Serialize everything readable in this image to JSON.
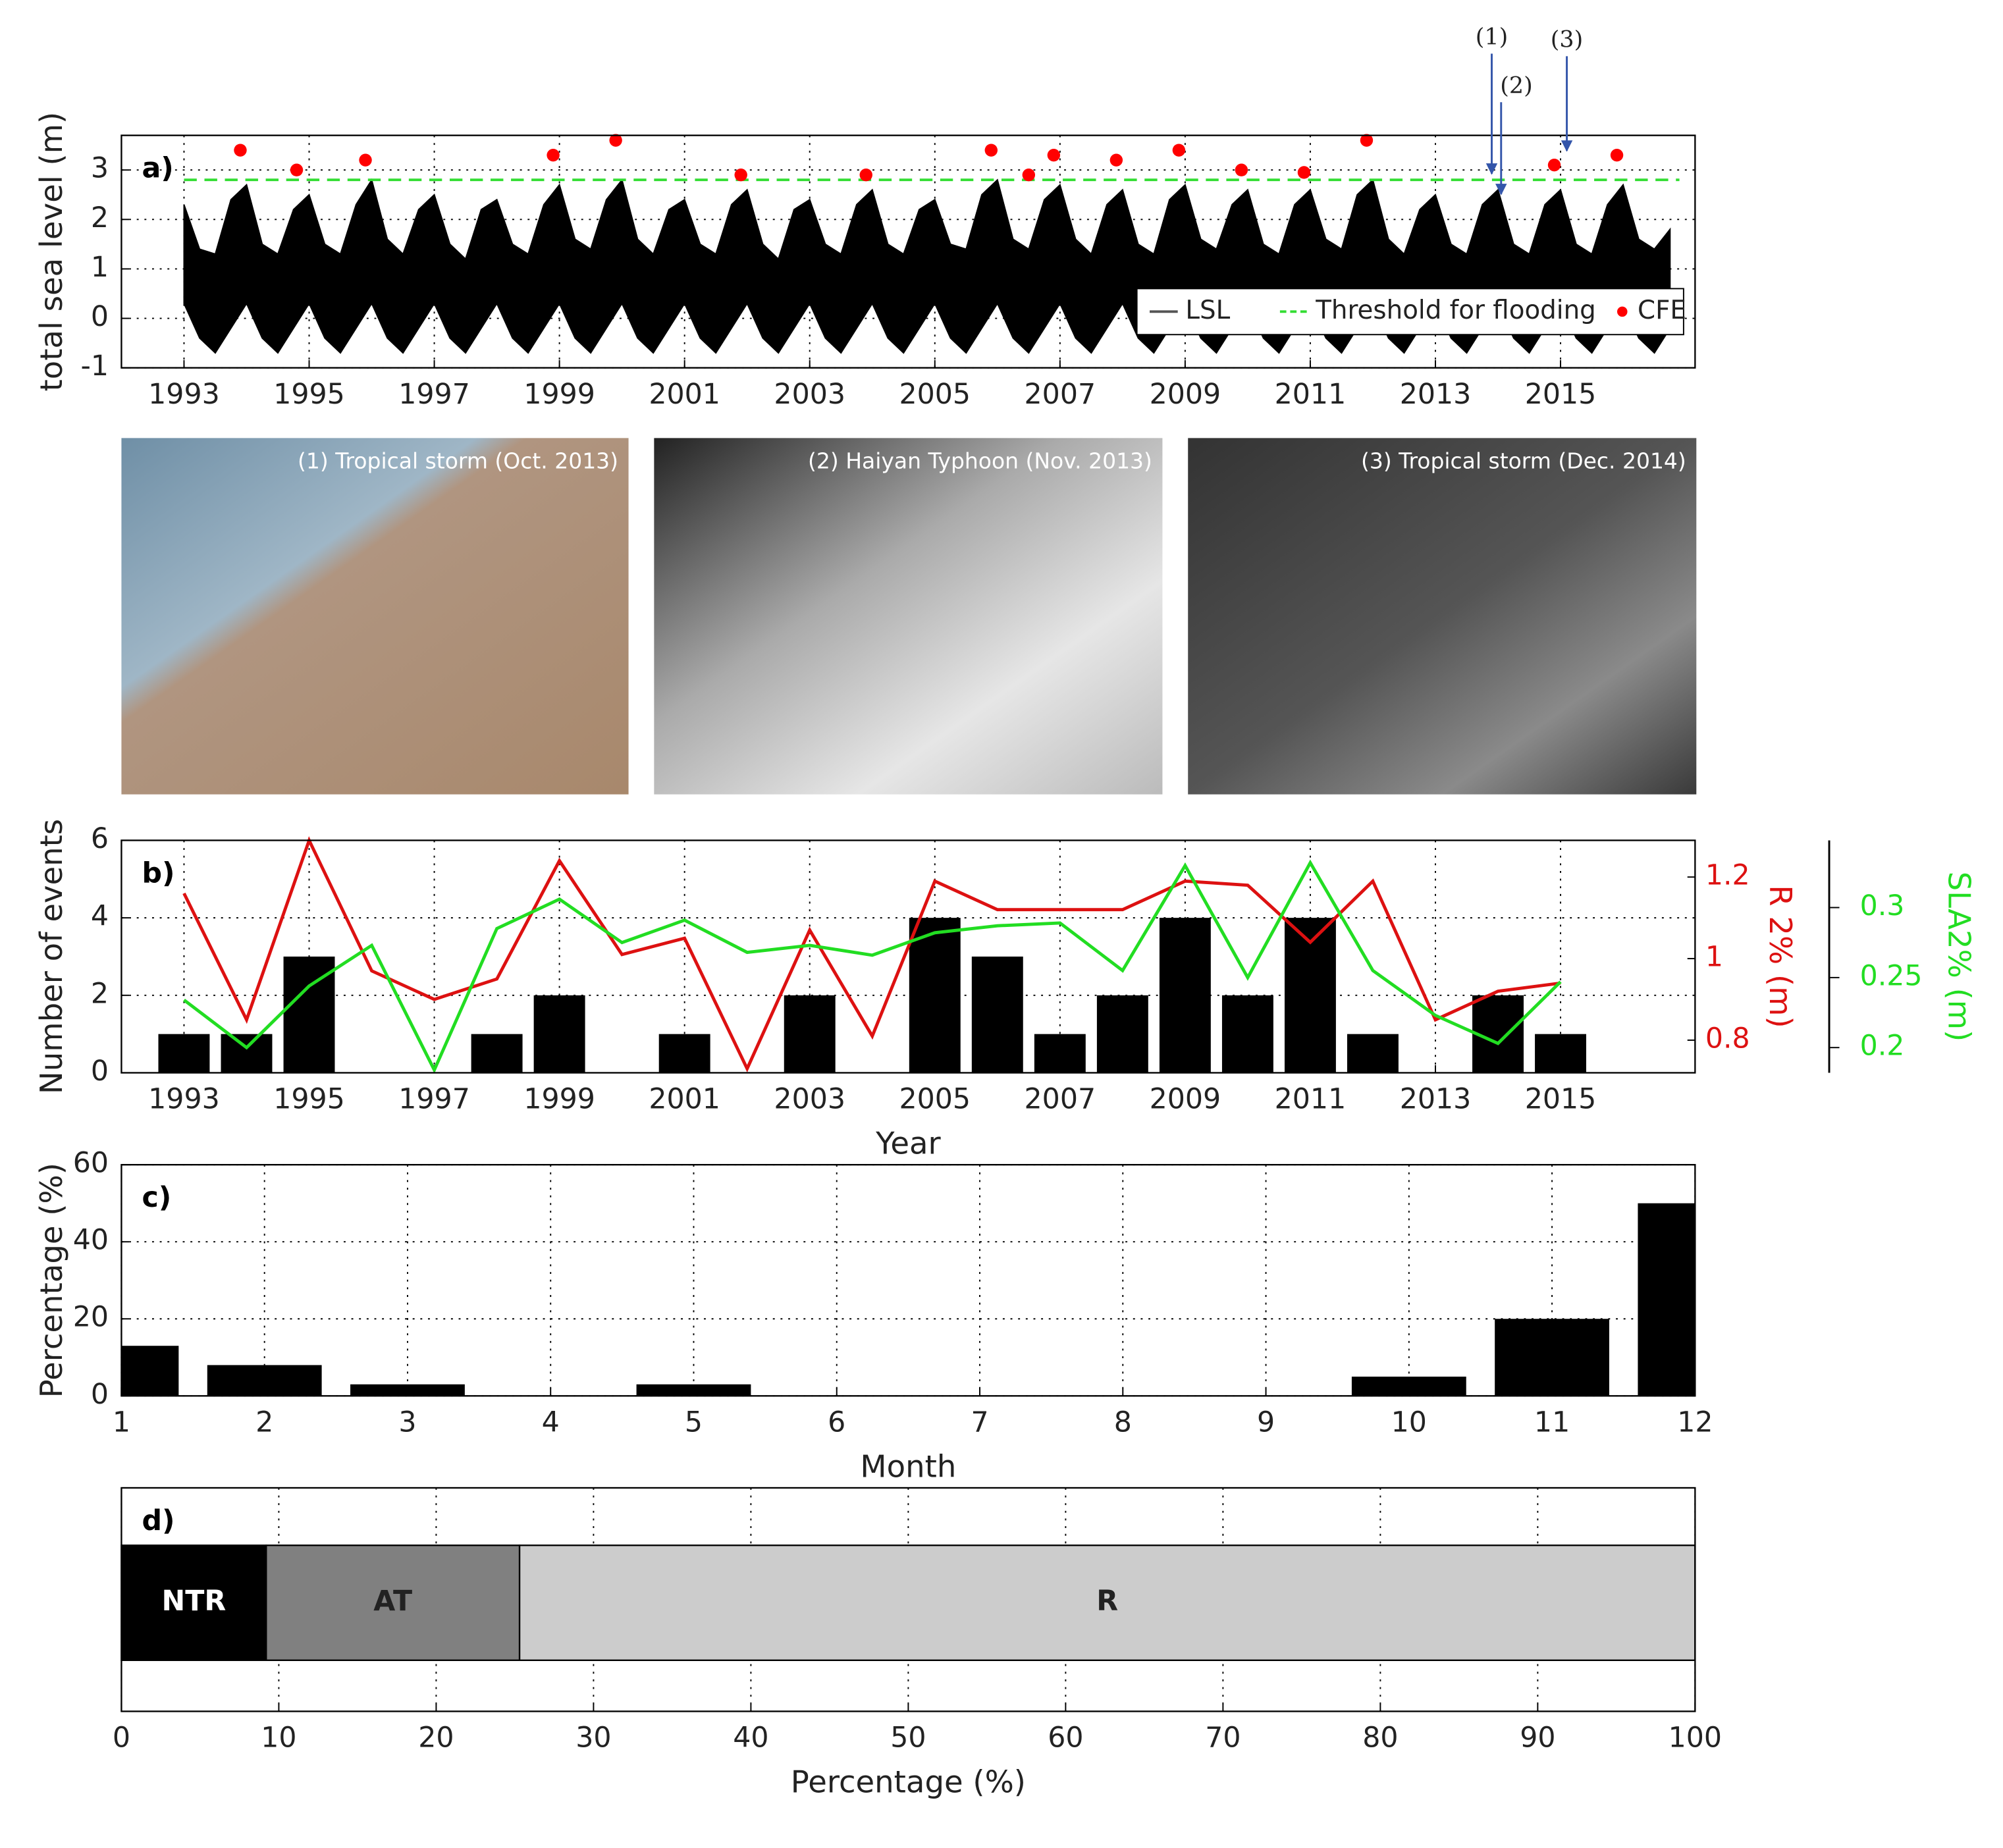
{
  "chart_data": [
    {
      "type": "line",
      "panel_label": "a)",
      "ylabel": "total sea level (m)",
      "xlim": [
        1992,
        2017.15
      ],
      "ylim": [
        -1,
        3.7
      ],
      "xticks": [
        1993,
        1995,
        1997,
        1999,
        2001,
        2003,
        2005,
        2007,
        2009,
        2011,
        2013,
        2015
      ],
      "yticks": [
        -1,
        0,
        1,
        2,
        3
      ],
      "grid": true,
      "legend": "lower right",
      "series": [
        {
          "name": "LSL",
          "color": "#000000",
          "x": [
            1993,
            1993.25,
            1993.5,
            1993.75,
            1994,
            1994.25,
            1994.5,
            1994.75,
            1995,
            1995.25,
            1995.5,
            1995.75,
            1996,
            1996.25,
            1996.5,
            1996.75,
            1997,
            1997.25,
            1997.5,
            1997.75,
            1998,
            1998.25,
            1998.5,
            1998.75,
            1999,
            1999.25,
            1999.5,
            1999.75,
            2000,
            2000.25,
            2000.5,
            2000.75,
            2001,
            2001.25,
            2001.5,
            2001.75,
            2002,
            2002.25,
            2002.5,
            2002.75,
            2003,
            2003.25,
            2003.5,
            2003.75,
            2004,
            2004.25,
            2004.5,
            2004.75,
            2005,
            2005.25,
            2005.5,
            2005.75,
            2006,
            2006.25,
            2006.5,
            2006.75,
            2007,
            2007.25,
            2007.5,
            2007.75,
            2008,
            2008.25,
            2008.5,
            2008.75,
            2009,
            2009.25,
            2009.5,
            2009.75,
            2010,
            2010.25,
            2010.5,
            2010.75,
            2011,
            2011.25,
            2011.5,
            2011.75,
            2012,
            2012.25,
            2012.5,
            2012.75,
            2013,
            2013.25,
            2013.5,
            2013.75,
            2014,
            2014.25,
            2014.5,
            2014.75,
            2015,
            2015.25,
            2015.5,
            2015.75,
            2016,
            2016.25,
            2016.5,
            2016.75
          ],
          "values": [
            2.3,
            1.4,
            1.3,
            2.4,
            2.7,
            1.5,
            1.3,
            2.2,
            2.5,
            1.5,
            1.3,
            2.3,
            2.8,
            1.6,
            1.3,
            2.2,
            2.5,
            1.5,
            1.2,
            2.2,
            2.4,
            1.5,
            1.3,
            2.3,
            2.7,
            1.6,
            1.4,
            2.4,
            2.8,
            1.6,
            1.3,
            2.2,
            2.4,
            1.5,
            1.3,
            2.3,
            2.6,
            1.5,
            1.2,
            2.2,
            2.4,
            1.5,
            1.3,
            2.3,
            2.6,
            1.5,
            1.3,
            2.2,
            2.4,
            1.5,
            1.4,
            2.5,
            2.8,
            1.6,
            1.4,
            2.4,
            2.7,
            1.6,
            1.3,
            2.3,
            2.6,
            1.5,
            1.3,
            2.4,
            2.7,
            1.6,
            1.4,
            2.3,
            2.6,
            1.5,
            1.3,
            2.3,
            2.6,
            1.6,
            1.4,
            2.5,
            2.8,
            1.6,
            1.3,
            2.2,
            2.5,
            1.5,
            1.3,
            2.3,
            2.6,
            1.5,
            1.3,
            2.3,
            2.6,
            1.5,
            1.3,
            2.3,
            2.7,
            1.6,
            1.4,
            1.8
          ],
          "low": [
            0.3,
            -0.4,
            -0.7,
            -0.2,
            0.3,
            -0.4,
            -0.7,
            -0.2,
            0.3,
            -0.4,
            -0.7,
            -0.2,
            0.3,
            -0.4,
            -0.7,
            -0.2,
            0.3,
            -0.4,
            -0.7,
            -0.2,
            0.3,
            -0.4,
            -0.7,
            -0.2,
            0.3,
            -0.4,
            -0.7,
            -0.2,
            0.3,
            -0.4,
            -0.7,
            -0.2,
            0.3,
            -0.4,
            -0.7,
            -0.2,
            0.3,
            -0.4,
            -0.7,
            -0.2,
            0.3,
            -0.4,
            -0.7,
            -0.2,
            0.3,
            -0.4,
            -0.7,
            -0.2,
            0.3,
            -0.4,
            -0.7,
            -0.2,
            0.3,
            -0.4,
            -0.7,
            -0.2,
            0.3,
            -0.4,
            -0.7,
            -0.2,
            0.3,
            -0.4,
            -0.7,
            -0.2,
            0.3,
            -0.4,
            -0.7,
            -0.2,
            0.3,
            -0.4,
            -0.7,
            -0.2,
            0.3,
            -0.4,
            -0.7,
            -0.2,
            0.3,
            -0.4,
            -0.7,
            -0.2,
            0.3,
            -0.4,
            -0.7,
            -0.2,
            0.3,
            -0.4,
            -0.7,
            -0.2,
            0.3,
            -0.4,
            -0.7,
            -0.2,
            0.3,
            -0.4,
            -0.7,
            -0.2
          ]
        },
        {
          "name": "Threshold for flooding",
          "color": "#33dd33",
          "dashed": true,
          "x": [
            1993,
            2016.9
          ],
          "values": [
            2.8,
            2.8
          ]
        },
        {
          "name": "CFE",
          "color": "#ff0000",
          "marker": "dot",
          "x": [
            1993.9,
            1994.8,
            1995.9,
            1998.9,
            1999.9,
            2001.9,
            2003.9,
            2005.9,
            2006.5,
            2006.9,
            2007.9,
            2008.9,
            2009.9,
            2010.9,
            2011.9,
            2014.9,
            2015.9
          ],
          "values": [
            3.4,
            3.0,
            3.2,
            3.3,
            3.6,
            2.9,
            2.9,
            3.4,
            2.9,
            3.3,
            3.2,
            3.4,
            3.0,
            2.95,
            3.6,
            3.1,
            3.3
          ]
        }
      ],
      "annotations": [
        {
          "text": "(1)",
          "x": 2013.9
        },
        {
          "text": "(2)",
          "x": 2014.05
        },
        {
          "text": "(3)",
          "x": 2015.1
        }
      ]
    },
    {
      "type": "bar",
      "panel_label": "b)",
      "xlabel": "Year",
      "ylabel": "Number of events",
      "y2label": "R 2% (m)",
      "y3label": "SLA2% (m)",
      "xlim": [
        1992,
        2017.15
      ],
      "ylim": [
        0,
        6
      ],
      "y2lim": [
        0.72,
        1.29
      ],
      "y3lim": [
        0.182,
        0.348
      ],
      "xticks": [
        1993,
        1995,
        1997,
        1999,
        2001,
        2003,
        2005,
        2007,
        2009,
        2011,
        2013,
        2015
      ],
      "yticks": [
        0,
        2,
        4,
        6
      ],
      "y2ticks": [
        0.8,
        1,
        1.2
      ],
      "y3ticks": [
        0.2,
        0.25,
        0.3
      ],
      "grid": true,
      "bar_width": 0.82,
      "x": [
        1993,
        1994,
        1995,
        1996,
        1997,
        1998,
        1999,
        2000,
        2001,
        2002,
        2003,
        2004,
        2005,
        2006,
        2007,
        2008,
        2009,
        2010,
        2011,
        2012,
        2013,
        2014,
        2015
      ],
      "series": [
        {
          "name": "Number of events",
          "color": "#000000",
          "values": [
            1,
            1,
            3,
            0,
            0,
            1,
            2,
            0,
            1,
            0,
            2,
            0,
            4,
            3,
            1,
            2,
            4,
            2,
            4,
            1,
            0,
            2,
            1
          ]
        },
        {
          "name": "R 2%",
          "color": "#dd1111",
          "axis": "y2",
          "values": [
            1.16,
            0.85,
            1.29,
            0.97,
            0.9,
            0.95,
            1.24,
            1.01,
            1.05,
            0.73,
            1.07,
            0.81,
            1.19,
            1.12,
            1.12,
            1.12,
            1.19,
            1.18,
            1.04,
            1.19,
            0.85,
            0.92,
            0.94
          ]
        },
        {
          "name": "SLA2%",
          "color": "#22dd22",
          "axis": "y3",
          "values": [
            0.234,
            0.2,
            0.244,
            0.273,
            0.184,
            0.285,
            0.306,
            0.275,
            0.291,
            0.268,
            0.273,
            0.266,
            0.282,
            0.287,
            0.289,
            0.255,
            0.33,
            0.25,
            0.332,
            0.255,
            0.223,
            0.203,
            0.247
          ]
        }
      ]
    },
    {
      "type": "bar",
      "panel_label": "c)",
      "xlabel": "Month",
      "ylabel": "Percentage (%)",
      "xlim": [
        1,
        12
      ],
      "ylim": [
        0,
        60
      ],
      "xticks": [
        1,
        2,
        3,
        4,
        5,
        6,
        7,
        8,
        9,
        10,
        11,
        12
      ],
      "yticks": [
        0,
        20,
        40,
        60
      ],
      "grid": true,
      "bar_width": 0.8,
      "x": [
        1,
        2,
        3,
        4,
        5,
        6,
        7,
        8,
        9,
        10,
        11,
        12
      ],
      "series": [
        {
          "name": "Percentage",
          "color": "#000000",
          "values": [
            13,
            8,
            3,
            0,
            3,
            0,
            0,
            0,
            0,
            5,
            20,
            50
          ]
        }
      ]
    },
    {
      "type": "bar",
      "orientation": "horizontal",
      "stacked": true,
      "panel_label": "d)",
      "xlabel": "Percentage (%)",
      "xlim": [
        0,
        100
      ],
      "xticks": [
        0,
        10,
        20,
        30,
        40,
        50,
        60,
        70,
        80,
        90,
        100
      ],
      "grid": true,
      "series": [
        {
          "name": "NTR",
          "color": "#000000",
          "label_color": "#ffffff",
          "values": [
            9.2
          ]
        },
        {
          "name": "AT",
          "color": "#808080",
          "label_color": "#222222",
          "values": [
            16.1
          ]
        },
        {
          "name": "R",
          "color": "#cccccc",
          "label_color": "#222222",
          "values": [
            74.7
          ]
        }
      ]
    }
  ],
  "photos": [
    {
      "caption": "(1) Tropical storm (Oct. 2013)"
    },
    {
      "caption": "(2) Haiyan Typhoon (Nov. 2013)"
    },
    {
      "caption": "(3) Tropical storm (Dec. 2014)"
    }
  ]
}
